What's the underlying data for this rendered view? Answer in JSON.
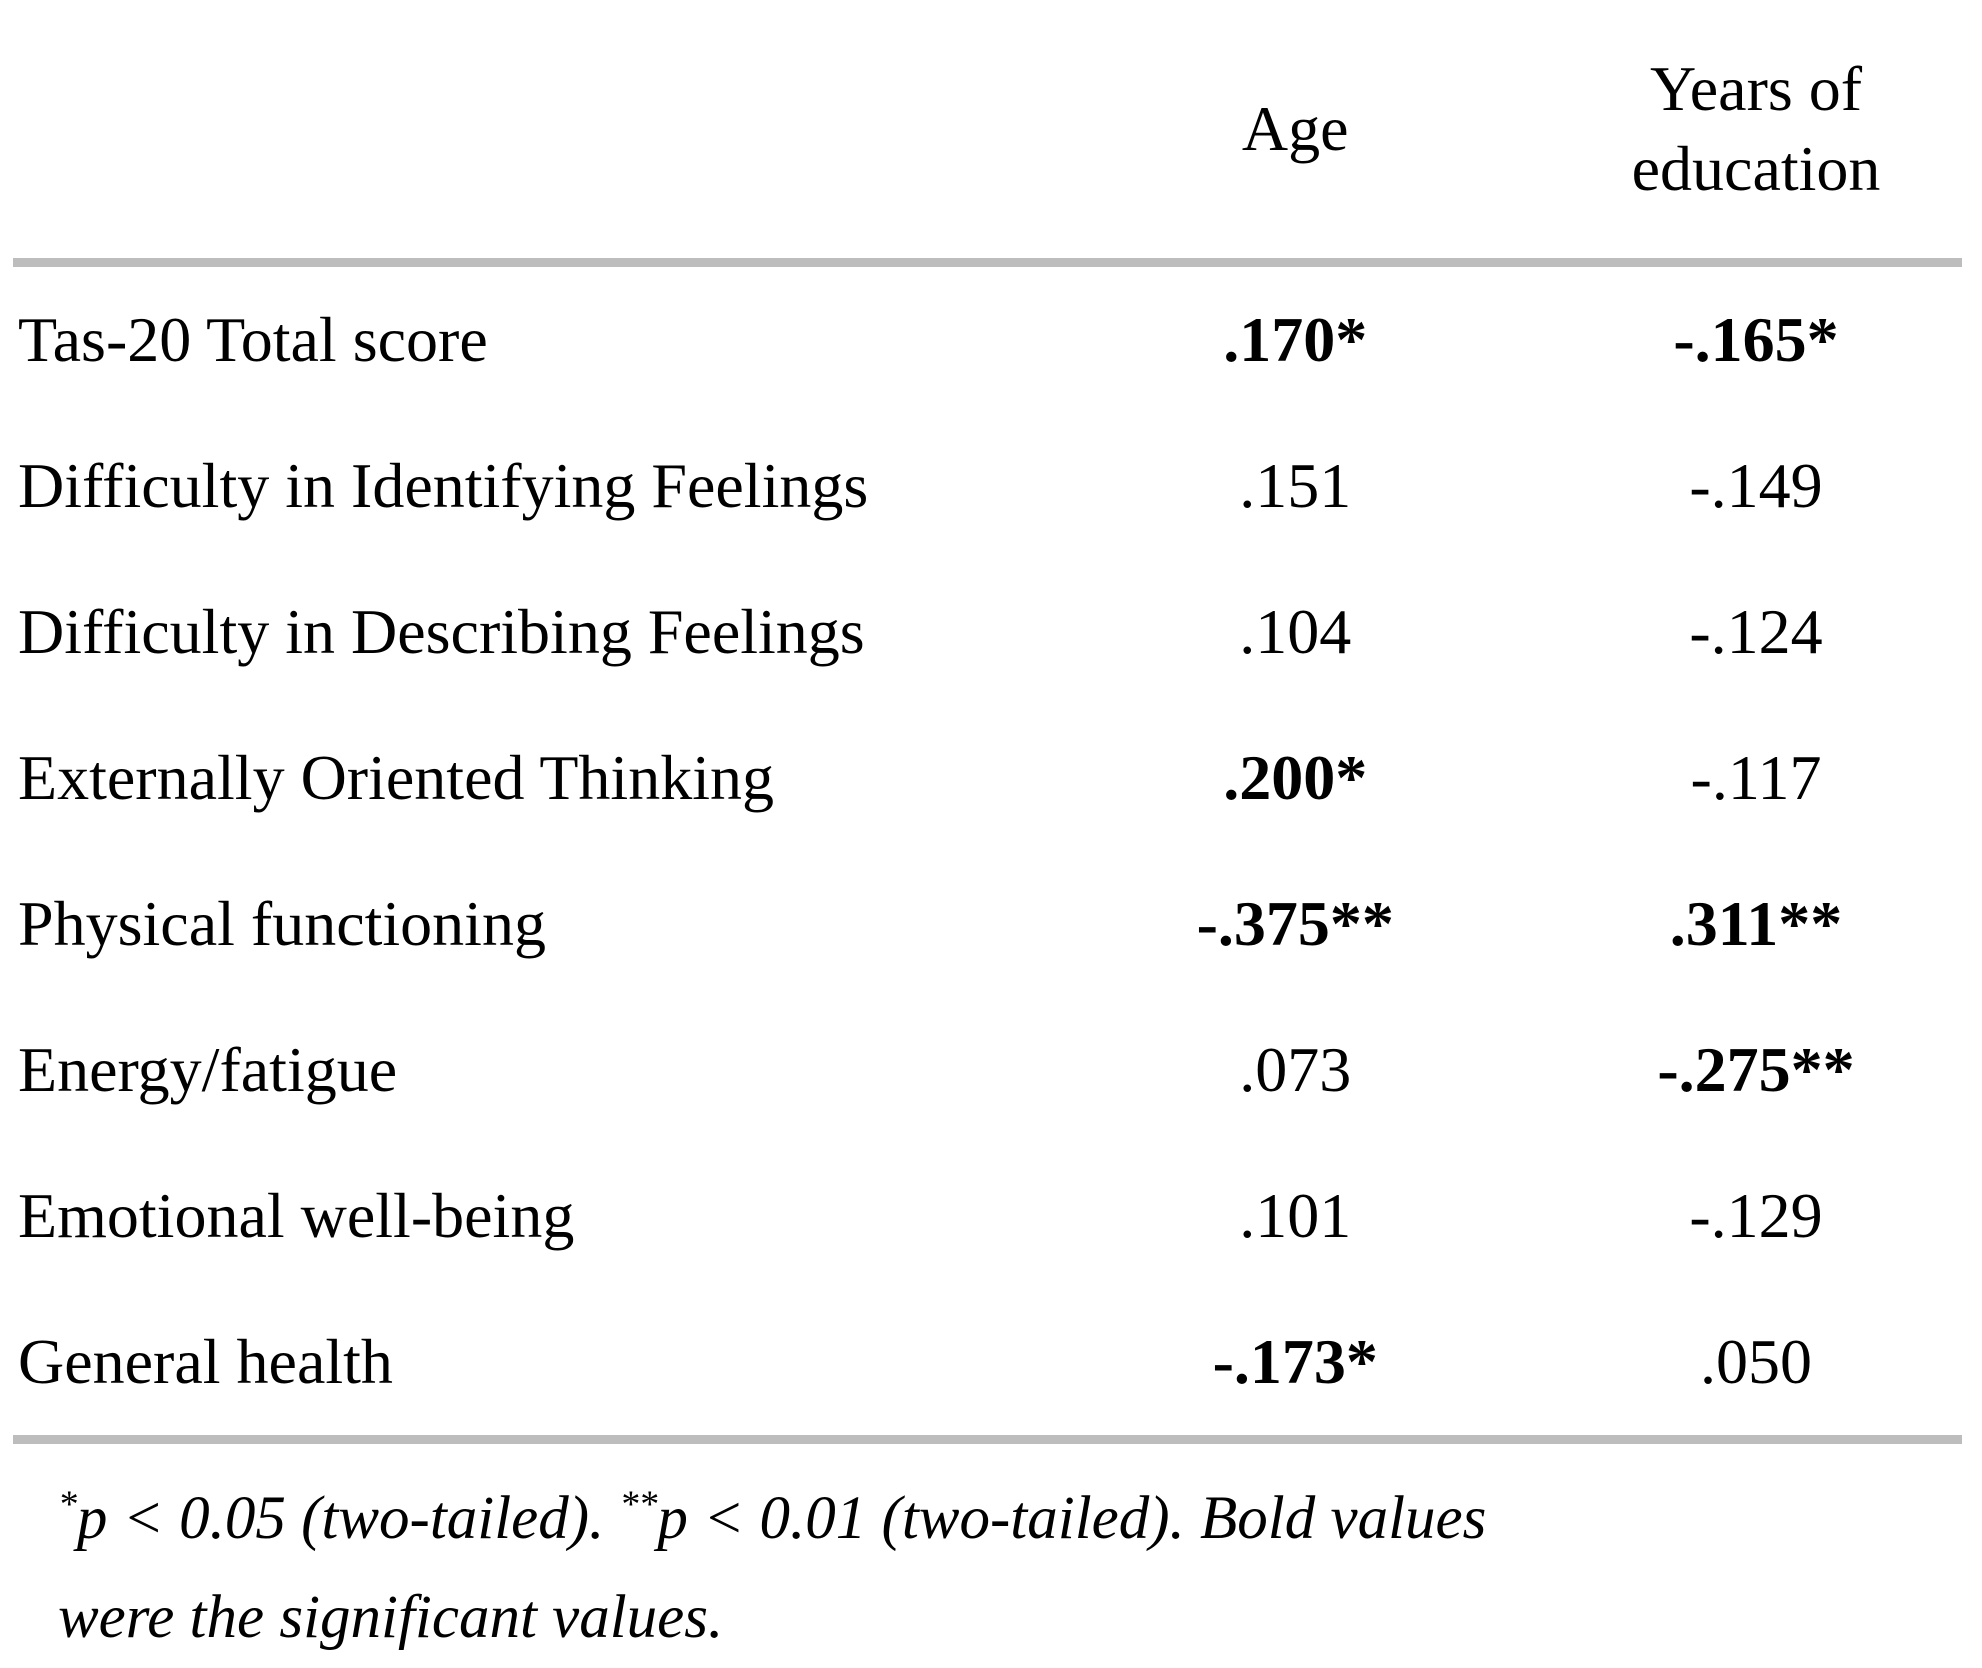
{
  "table": {
    "columns": {
      "age": "Age",
      "edu": "Years of education"
    },
    "rows": [
      {
        "label": "Tas-20 Total score",
        "age": ".170*",
        "age_bold": true,
        "edu": "-.165*",
        "edu_bold": true
      },
      {
        "label": "Difficulty in Identifying Feelings",
        "age": ".151",
        "age_bold": false,
        "edu": "-.149",
        "edu_bold": false
      },
      {
        "label": "Difficulty in Describing Feelings",
        "age": ".104",
        "age_bold": false,
        "edu": "-.124",
        "edu_bold": false
      },
      {
        "label": "Externally Oriented Thinking",
        "age": ".200*",
        "age_bold": true,
        "edu": "-.117",
        "edu_bold": false
      },
      {
        "label": "Physical functioning",
        "age": "-.375**",
        "age_bold": true,
        "edu": ".311**",
        "edu_bold": true
      },
      {
        "label": "Energy/fatigue",
        "age": ".073",
        "age_bold": false,
        "edu": "-.275**",
        "edu_bold": true
      },
      {
        "label": "Emotional well-being",
        "age": ".101",
        "age_bold": false,
        "edu": "-.129",
        "edu_bold": false
      },
      {
        "label": "General health",
        "age": "-.173*",
        "age_bold": true,
        "edu": ".050",
        "edu_bold": false
      }
    ]
  },
  "footnote": {
    "star1": "*",
    "text1": "p < 0.05 (two-tailed). ",
    "star2": "**",
    "text2": "p < 0.01 (two-tailed). ",
    "text3": "Bold values were the significant values."
  },
  "colors": {
    "rule": "#bdbdbd",
    "text": "#000000"
  }
}
